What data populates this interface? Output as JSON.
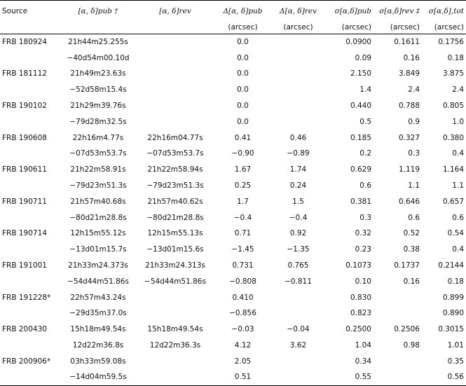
{
  "table": {
    "headers": [
      "Source",
      "[α, δ]pub †",
      "[α, δ]rev",
      "Δ[α, δ]pub",
      "Δ[α, δ]rev",
      "σ[α,δ]pub",
      "σ[α,δ]rev ‡",
      "σ[α,δ],tot"
    ],
    "units": [
      "",
      "",
      "",
      "(arcsec)",
      "(arcsec)",
      "(arcsec)",
      "(arcsec)",
      "(arcsec)"
    ],
    "rows": [
      [
        "FRB 180924",
        "21h44m25.255s",
        "",
        "0.0",
        "",
        "0.0900",
        "0.1611",
        "0.1756"
      ],
      [
        "",
        "−40d54m00.10d",
        "",
        "0.0",
        "",
        "0.09",
        "0.16",
        "0.18"
      ],
      [
        "FRB 181112",
        "21h49m23.63s",
        "",
        "0.0",
        "",
        "2.150",
        "3.849",
        "3.875"
      ],
      [
        "",
        "−52d58m15.4s",
        "",
        "0.0",
        "",
        "1.4",
        "2.4",
        "2.4"
      ],
      [
        "FRB 190102",
        "21h29m39.76s",
        "",
        "0.0",
        "",
        "0.440",
        "0.788",
        "0.805"
      ],
      [
        "",
        "−79d28m32.5s",
        "",
        "0.0",
        "",
        "0.5",
        "0.9",
        "1.0"
      ],
      [
        "FRB 190608",
        "22h16m4.77s",
        "22h16m04.77s",
        "0.41",
        "0.46",
        "0.185",
        "0.327",
        "0.380"
      ],
      [
        "",
        "−07d53m53.7s",
        "−07d53m53.7s",
        "−0.90",
        "−0.89",
        "0.2",
        "0.3",
        "0.4"
      ],
      [
        "FRB 190611",
        "21h22m58.91s",
        "21h22m58.94s",
        "1.67",
        "1.74",
        "0.629",
        "1.119",
        "1.164"
      ],
      [
        "",
        "−79d23m51.3s",
        "−79d23m51.3s",
        "0.25",
        "0.24",
        "0.6",
        "1.1",
        "1.1"
      ],
      [
        "FRB 190711",
        "21h57m40.68s",
        "21h57m40.62s",
        "1.7",
        "1.5",
        "0.381",
        "0.646",
        "0.657"
      ],
      [
        "",
        "−80d21m28.8s",
        "−80d21m28.8s",
        "−0.4",
        "−0.4",
        "0.3",
        "0.6",
        "0.6"
      ],
      [
        "FRB 190714",
        "12h15m55.12s",
        "12h15m55.13s",
        "0.71",
        "0.92",
        "0.32",
        "0.52",
        "0.54"
      ],
      [
        "",
        "−13d01m15.7s",
        "−13d01m15.6s",
        "−1.45",
        "−1.35",
        "0.23",
        "0.38",
        "0.4"
      ],
      [
        "FRB 191001",
        "21h33m24.373s",
        "21h33m24.313s",
        "0.731",
        "0.765",
        "0.1073",
        "0.1737",
        "0.2144"
      ],
      [
        "",
        "−54d44m51.86s",
        "−54d44m51.86s",
        "−0.808",
        "−0.811",
        "0.10",
        "0.16",
        "0.18"
      ],
      [
        "FRB 191228*",
        "22h57m43.24s",
        "",
        "0.410",
        "",
        "0.830",
        "",
        "0.899"
      ],
      [
        "",
        "−29d35m37.0s",
        "",
        "−0.856",
        "",
        "0.823",
        "",
        "0.890"
      ],
      [
        "FRB 200430",
        "15h18m49.54s",
        "15h18m49.54s",
        "−0.03",
        "−0.04",
        "0.2500",
        "0.2506",
        "0.3015"
      ],
      [
        "",
        "12d22m36.8s",
        "12d22m36.3s",
        "4.12",
        "3.62",
        "1.04",
        "0.98",
        "1.01"
      ],
      [
        "FRB 200906*",
        "03h33m59.08s",
        "",
        "2.05",
        "",
        "0.34",
        "",
        "0.35"
      ],
      [
        "",
        "−14d04m59.5s",
        "",
        "0.51",
        "",
        "0.55",
        "",
        "0.56"
      ]
    ]
  }
}
